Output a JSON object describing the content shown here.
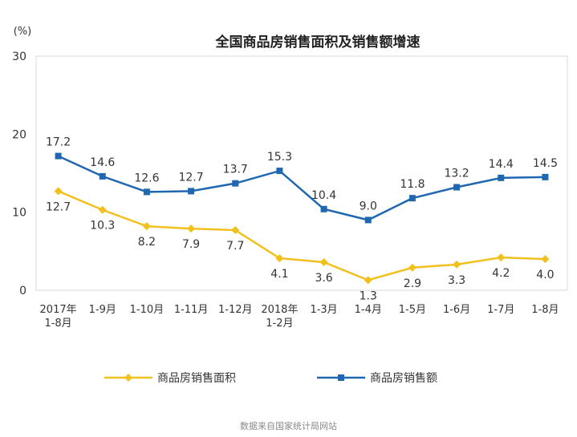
{
  "chart_data": {
    "type": "line",
    "title": "全国商品房销售面积及销售额增速",
    "y_unit": "(%)",
    "ylim": [
      0,
      30
    ],
    "yticks": [
      0,
      10,
      20,
      30
    ],
    "categories": [
      [
        "2017年",
        "1-8月"
      ],
      [
        "1-9月"
      ],
      [
        "1-10月"
      ],
      [
        "1-11月"
      ],
      [
        "1-12月"
      ],
      [
        "2018年",
        "1-2月"
      ],
      [
        "1-3月"
      ],
      [
        "1-4月"
      ],
      [
        "1-5月"
      ],
      [
        "1-6月"
      ],
      [
        "1-7月"
      ],
      [
        "1-8月"
      ]
    ],
    "series": [
      {
        "name": "商品房销售面积",
        "color": "#f2c01c",
        "marker": "diamond",
        "values": [
          12.7,
          10.3,
          8.2,
          7.9,
          7.7,
          4.1,
          3.6,
          1.3,
          2.9,
          3.3,
          4.2,
          4.0
        ],
        "labels": [
          "12.7",
          "10.3",
          "8.2",
          "7.9",
          "7.7",
          "4.1",
          "3.6",
          "1.3",
          "2.9",
          "3.3",
          "4.2",
          "4.0"
        ]
      },
      {
        "name": "商品房销售额",
        "color": "#1f67b1",
        "marker": "square",
        "values": [
          17.2,
          14.6,
          12.6,
          12.7,
          13.7,
          15.3,
          10.4,
          9.0,
          11.8,
          13.2,
          14.4,
          14.5
        ],
        "labels": [
          "17.2",
          "14.6",
          "12.6",
          "12.7",
          "13.7",
          "15.3",
          "10.4",
          "9.0",
          "11.8",
          "13.2",
          "14.4",
          "14.5"
        ]
      }
    ],
    "grid": false,
    "legend_position": "bottom"
  },
  "source_note": "数据来自国家统计局网站"
}
